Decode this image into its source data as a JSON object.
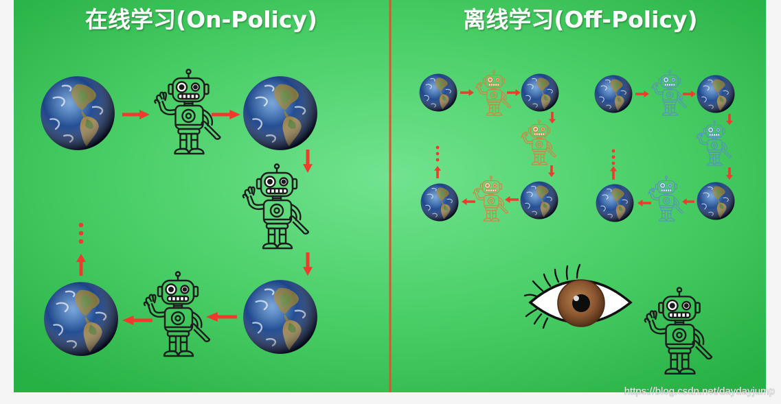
{
  "titles": {
    "on_policy": "在线学习(On-Policy)",
    "off_policy": "离线学习(Off-Policy)"
  },
  "watermark": "https://blog.csdn.net/daydayjump",
  "colors": {
    "arrow": "#ee3b2b",
    "divider": "#d8572f",
    "robot_on_policy": "#1c1c1c",
    "robot_orange": "#e07a3c",
    "robot_blue": "#5b8fc2"
  },
  "icons": {
    "globe": "globe-icon",
    "robot": "robot-icon",
    "eye": "eye-icon",
    "arrow": "arrow-icon"
  }
}
